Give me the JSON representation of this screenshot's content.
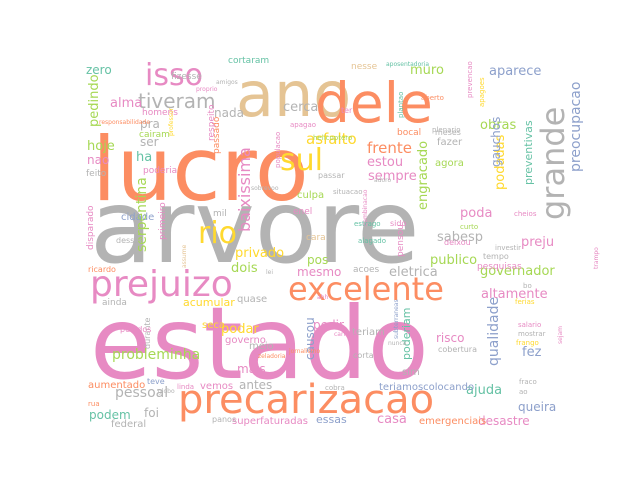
{
  "palette": {
    "gray": "#b3b3b3",
    "orange": "#fc8d62",
    "pink": "#e78ac3",
    "yellow": "#ffd92f",
    "green": "#a6d854",
    "teal": "#66c2a5",
    "blue": "#8da0cb",
    "tan": "#e5c494"
  },
  "words": [
    {
      "text": "estado",
      "color": "pink"
    },
    {
      "text": "arvore",
      "color": "gray"
    },
    {
      "text": "lucro",
      "color": "orange"
    },
    {
      "text": "ano",
      "color": "tan"
    },
    {
      "text": "dele",
      "color": "orange"
    },
    {
      "text": "precarizacao",
      "color": "orange"
    },
    {
      "text": "prejuizo",
      "color": "pink"
    },
    {
      "text": "excelente",
      "color": "orange"
    },
    {
      "text": "grande",
      "color": "gray"
    },
    {
      "text": "isso",
      "color": "pink"
    },
    {
      "text": "sul",
      "color": "yellow"
    },
    {
      "text": "rio",
      "color": "yellow"
    },
    {
      "text": "tiveram",
      "color": "gray"
    },
    {
      "text": "baixissima",
      "color": "pink"
    },
    {
      "text": "probleminha",
      "color": "green"
    },
    {
      "text": "serpentina",
      "color": "green"
    },
    {
      "text": "pessoal",
      "color": "gray"
    },
    {
      "text": "governador",
      "color": "green"
    },
    {
      "text": "qualidade",
      "color": "blue"
    },
    {
      "text": "podadas",
      "color": "yellow"
    },
    {
      "text": "preventivas",
      "color": "teal"
    },
    {
      "text": "preocupacao",
      "color": "blue"
    },
    {
      "text": "aparece",
      "color": "blue"
    },
    {
      "text": "obras",
      "color": "green"
    },
    {
      "text": "frente",
      "color": "orange"
    },
    {
      "text": "sempre",
      "color": "pink"
    },
    {
      "text": "estou",
      "color": "pink"
    },
    {
      "text": "asfalto",
      "color": "yellow"
    },
    {
      "text": "cerca",
      "color": "gray"
    },
    {
      "text": "nada",
      "color": "gray"
    },
    {
      "text": "alma",
      "color": "pink"
    },
    {
      "text": "pra",
      "color": "gray"
    },
    {
      "text": "ser",
      "color": "gray"
    },
    {
      "text": "hoje",
      "color": "green"
    },
    {
      "text": "ha",
      "color": "teal"
    },
    {
      "text": "nao",
      "color": "pink"
    },
    {
      "text": "pedindo",
      "color": "green"
    },
    {
      "text": "zero",
      "color": "teal"
    },
    {
      "text": "muro",
      "color": "green"
    },
    {
      "text": "gauchos",
      "color": "blue"
    },
    {
      "text": "engracado",
      "color": "green"
    },
    {
      "text": "sabesp",
      "color": "gray"
    },
    {
      "text": "poda",
      "color": "pink"
    },
    {
      "text": "publico",
      "color": "green"
    },
    {
      "text": "preju",
      "color": "pink"
    },
    {
      "text": "eletrica",
      "color": "gray"
    },
    {
      "text": "altamente",
      "color": "pink"
    },
    {
      "text": "privado",
      "color": "yellow"
    },
    {
      "text": "dois",
      "color": "green"
    },
    {
      "text": "pos",
      "color": "green"
    },
    {
      "text": "mesmo",
      "color": "pink"
    },
    {
      "text": "pedir",
      "color": "pink"
    },
    {
      "text": "podar",
      "color": "yellow"
    },
    {
      "text": "mais",
      "color": "pink"
    },
    {
      "text": "antes",
      "color": "gray"
    },
    {
      "text": "causou",
      "color": "blue"
    },
    {
      "text": "fez",
      "color": "blue"
    },
    {
      "text": "ajuda",
      "color": "teal"
    },
    {
      "text": "queira",
      "color": "blue"
    },
    {
      "text": "casa",
      "color": "pink"
    },
    {
      "text": "essas",
      "color": "blue"
    },
    {
      "text": "desastre",
      "color": "pink"
    },
    {
      "text": "podem",
      "color": "teal"
    },
    {
      "text": "foi",
      "color": "gray"
    },
    {
      "text": "agora",
      "color": "green"
    },
    {
      "text": "fazer",
      "color": "gray"
    },
    {
      "text": "poderiam",
      "color": "teal"
    },
    {
      "text": "risco",
      "color": "pink"
    },
    {
      "text": "teriamoscolocando",
      "color": "blue"
    },
    {
      "text": "emergenciais",
      "color": "orange"
    },
    {
      "text": "superfaturadas",
      "color": "pink"
    },
    {
      "text": "acumular",
      "color": "yellow"
    },
    {
      "text": "quase",
      "color": "gray"
    },
    {
      "text": "aumentado",
      "color": "orange"
    },
    {
      "text": "vemos",
      "color": "pink"
    },
    {
      "text": "meio",
      "color": "gray"
    },
    {
      "text": "seca",
      "color": "yellow"
    },
    {
      "text": "governo",
      "color": "pink"
    },
    {
      "text": "teriam",
      "color": "gray"
    },
    {
      "text": "sim",
      "color": "gray"
    },
    {
      "text": "federal",
      "color": "gray"
    },
    {
      "text": "culpa",
      "color": "green"
    },
    {
      "text": "cidade",
      "color": "blue"
    },
    {
      "text": "mil",
      "color": "gray"
    },
    {
      "text": "enel",
      "color": "pink"
    },
    {
      "text": "cara",
      "color": "tan"
    },
    {
      "text": "ainda",
      "color": "gray"
    },
    {
      "text": "primeiro",
      "color": "pink"
    },
    {
      "text": "disparado",
      "color": "pink"
    },
    {
      "text": "feito",
      "color": "gray"
    },
    {
      "text": "poderia",
      "color": "pink"
    },
    {
      "text": "cairam",
      "color": "green"
    },
    {
      "text": "homens",
      "color": "pink"
    },
    {
      "text": "passado",
      "color": "orange"
    },
    {
      "text": "respeito",
      "color": "pink"
    },
    {
      "text": "fizesse",
      "color": "gray"
    },
    {
      "text": "cortaram",
      "color": "teal"
    },
    {
      "text": "nesse",
      "color": "tan"
    },
    {
      "text": "bocal",
      "color": "orange"
    },
    {
      "text": "ter",
      "color": "pink"
    },
    {
      "text": "meses",
      "color": "gray"
    },
    {
      "text": "passar",
      "color": "gray"
    },
    {
      "text": "sido",
      "color": "pink"
    },
    {
      "text": "pensou",
      "color": "pink"
    },
    {
      "text": "pesquisas",
      "color": "pink"
    },
    {
      "text": "deixou",
      "color": "pink"
    },
    {
      "text": "tempo",
      "color": "gray"
    },
    {
      "text": "acoes",
      "color": "gray"
    },
    {
      "text": "durante",
      "color": "gray"
    },
    {
      "text": "pedidos",
      "color": "pink"
    },
    {
      "text": "ricardo",
      "color": "orange"
    },
    {
      "text": "desses",
      "color": "gray"
    },
    {
      "text": "teve",
      "color": "blue"
    },
    {
      "text": "linda",
      "color": "pink"
    },
    {
      "text": "rua",
      "color": "orange"
    },
    {
      "text": "panos",
      "color": "gray"
    },
    {
      "text": "corta",
      "color": "gray"
    },
    {
      "text": "cobra",
      "color": "gray"
    },
    {
      "text": "cobertura",
      "color": "gray"
    },
    {
      "text": "cheios",
      "color": "pink"
    },
    {
      "text": "estrago",
      "color": "teal"
    },
    {
      "text": "alagado",
      "color": "teal"
    },
    {
      "text": "curto",
      "color": "green"
    },
    {
      "text": "investir",
      "color": "gray"
    },
    {
      "text": "bo",
      "color": "gray"
    },
    {
      "text": "ferias",
      "color": "yellow"
    },
    {
      "text": "mostrar",
      "color": "gray"
    },
    {
      "text": "frango",
      "color": "yellow"
    },
    {
      "text": "salario",
      "color": "pink"
    },
    {
      "text": "fraco",
      "color": "gray"
    },
    {
      "text": "ao",
      "color": "gray"
    },
    {
      "text": "aberto",
      "color": "orange"
    },
    {
      "text": "apagoes",
      "color": "yellow"
    },
    {
      "text": "prevencao",
      "color": "pink"
    },
    {
      "text": "plantao",
      "color": "teal"
    },
    {
      "text": "plenario",
      "color": "gray"
    },
    {
      "text": "populacao",
      "color": "pink"
    },
    {
      "text": "apagao",
      "color": "pink"
    },
    {
      "text": "helicoptero",
      "color": "green"
    },
    {
      "text": "proprio",
      "color": "pink"
    },
    {
      "text": "amigos",
      "color": "gray"
    },
    {
      "text": "responsabilidade",
      "color": "orange"
    },
    {
      "text": "combinacao",
      "color": "pink"
    },
    {
      "text": "adoro",
      "color": "gray"
    },
    {
      "text": "situacao",
      "color": "gray"
    },
    {
      "text": "sobrevoo",
      "color": "gray"
    },
    {
      "text": "lei",
      "color": "gray"
    },
    {
      "text": "ahh",
      "color": "pink"
    },
    {
      "text": "carisma",
      "color": "pink"
    },
    {
      "text": "nunca",
      "color": "gray"
    },
    {
      "text": "subterraneas",
      "color": "blue"
    },
    {
      "text": "jornalismo",
      "color": "orange"
    },
    {
      "text": "zeladoria",
      "color": "orange"
    },
    {
      "text": "trampo",
      "color": "pink"
    },
    {
      "text": "sejam",
      "color": "pink"
    },
    {
      "text": "aposentadoria",
      "color": "teal"
    },
    {
      "text": "professor",
      "color": "yellow"
    },
    {
      "text": "assume",
      "color": "tan"
    },
    {
      "text": "globo",
      "color": "gray"
    },
    {
      "text": "esse",
      "color": "gray"
    },
    {
      "text": "aumentou",
      "color": "pink"
    }
  ]
}
